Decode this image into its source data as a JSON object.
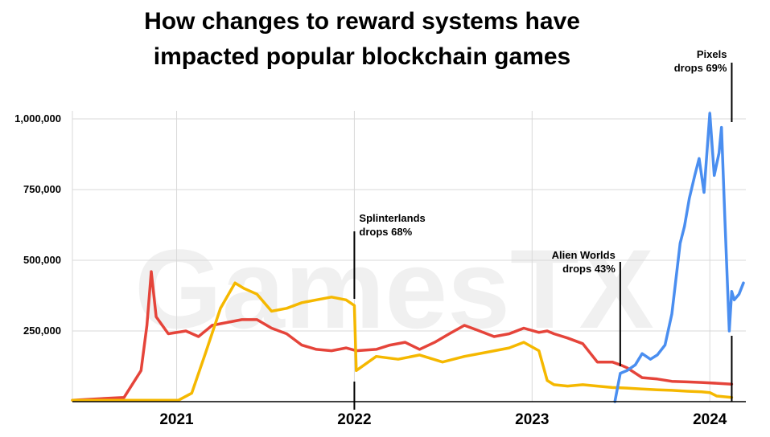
{
  "chart_data": {
    "type": "line",
    "title": [
      "How changes to reward systems have",
      "impacted popular blockchain games"
    ],
    "watermark": "GamesTX",
    "xlabel": "",
    "ylabel": "",
    "ylim": [
      0,
      1000000
    ],
    "xlim": [
      "2020-06-01",
      "2024-03-15"
    ],
    "grid": true,
    "y_ticks": [
      {
        "value": 1000000,
        "label": "1,000,000"
      },
      {
        "value": 750000,
        "label": "750,000"
      },
      {
        "value": 500000,
        "label": "500,000"
      },
      {
        "value": 250000,
        "label": "250,000"
      }
    ],
    "x_ticks": [
      {
        "value": "2021-01-01",
        "label": "2021"
      },
      {
        "value": "2022-01-01",
        "label": "2022"
      },
      {
        "value": "2023-01-01",
        "label": "2023"
      },
      {
        "value": "2024-01-01",
        "label": "2024"
      }
    ],
    "x_gridlines": [
      "2021-01-01",
      "2022-01-01",
      "2023-01-01",
      "2024-01-01"
    ],
    "series": [
      {
        "color": "#e5443a",
        "x": [
          "2020-06-01",
          "2020-09-15",
          "2020-10-20",
          "2020-11-01",
          "2020-11-10",
          "2020-11-20",
          "2020-12-15",
          "2021-01-20",
          "2021-02-15",
          "2021-03-15",
          "2021-04-15",
          "2021-05-15",
          "2021-06-15",
          "2021-07-15",
          "2021-08-15",
          "2021-09-15",
          "2021-10-15",
          "2021-11-15",
          "2021-12-15",
          "2022-01-05",
          "2022-02-15",
          "2022-03-15",
          "2022-04-15",
          "2022-05-15",
          "2022-06-15",
          "2022-07-15",
          "2022-08-15",
          "2022-09-15",
          "2022-10-15",
          "2022-11-15",
          "2022-12-15",
          "2023-01-15",
          "2023-02-01",
          "2023-02-15",
          "2023-03-15",
          "2023-04-15",
          "2023-05-15",
          "2023-06-15",
          "2023-07-01",
          "2023-07-15",
          "2023-08-15",
          "2023-09-15",
          "2023-10-15",
          "2023-11-15",
          "2023-12-15",
          "2024-01-15",
          "2024-02-15"
        ],
        "values": [
          5000,
          15000,
          110000,
          270000,
          460000,
          300000,
          240000,
          250000,
          230000,
          270000,
          280000,
          290000,
          290000,
          260000,
          240000,
          200000,
          185000,
          180000,
          190000,
          180000,
          185000,
          200000,
          210000,
          185000,
          210000,
          240000,
          270000,
          250000,
          230000,
          240000,
          260000,
          245000,
          250000,
          240000,
          225000,
          205000,
          140000,
          140000,
          130000,
          120000,
          85000,
          80000,
          72000,
          70000,
          68000,
          65000,
          62000
        ]
      },
      {
        "color": "#f5b800",
        "x": [
          "2020-06-01",
          "2021-01-05",
          "2021-02-01",
          "2021-03-01",
          "2021-04-01",
          "2021-05-01",
          "2021-05-20",
          "2021-06-15",
          "2021-07-15",
          "2021-08-15",
          "2021-09-15",
          "2021-10-15",
          "2021-11-15",
          "2021-12-15",
          "2022-01-01",
          "2022-01-05",
          "2022-02-15",
          "2022-04-01",
          "2022-05-15",
          "2022-07-01",
          "2022-08-15",
          "2022-10-01",
          "2022-11-15",
          "2022-12-15",
          "2023-01-15",
          "2023-02-01",
          "2023-02-15",
          "2023-03-15",
          "2023-04-15",
          "2023-05-15",
          "2023-06-15",
          "2023-07-15",
          "2023-08-15",
          "2023-09-15",
          "2023-10-15",
          "2023-11-15",
          "2023-12-15",
          "2024-01-01",
          "2024-01-15",
          "2024-02-15"
        ],
        "values": [
          5000,
          5000,
          30000,
          170000,
          330000,
          420000,
          400000,
          380000,
          320000,
          330000,
          350000,
          360000,
          370000,
          360000,
          340000,
          110000,
          160000,
          150000,
          165000,
          140000,
          160000,
          175000,
          190000,
          210000,
          180000,
          75000,
          60000,
          55000,
          60000,
          55000,
          50000,
          48000,
          45000,
          42000,
          40000,
          37000,
          35000,
          32000,
          20000,
          15000
        ]
      },
      {
        "color": "#4a8ef0",
        "x": [
          "2023-06-20",
          "2023-07-01",
          "2023-07-15",
          "2023-08-01",
          "2023-08-15",
          "2023-09-01",
          "2023-09-15",
          "2023-10-01",
          "2023-10-15",
          "2023-11-01",
          "2023-11-10",
          "2023-11-20",
          "2023-12-01",
          "2023-12-10",
          "2023-12-20",
          "2024-01-01",
          "2024-01-10",
          "2024-01-20",
          "2024-01-25",
          "2024-02-01",
          "2024-02-10",
          "2024-02-15",
          "2024-02-20",
          "2024-03-01",
          "2024-03-10"
        ],
        "values": [
          0,
          100000,
          110000,
          130000,
          170000,
          150000,
          165000,
          200000,
          310000,
          560000,
          620000,
          720000,
          800000,
          860000,
          740000,
          1020000,
          800000,
          880000,
          970000,
          640000,
          250000,
          390000,
          360000,
          380000,
          420000
        ]
      }
    ],
    "annotations": [
      {
        "lines": [
          "Splinterlands",
          "drops 68%"
        ],
        "date": "2022-01-01"
      },
      {
        "lines": [
          "Alien Worlds",
          "drops 43%"
        ],
        "date": "2023-07-01"
      },
      {
        "lines": [
          "Pixels",
          "drops 69%"
        ],
        "date": "2024-02-15"
      }
    ]
  }
}
